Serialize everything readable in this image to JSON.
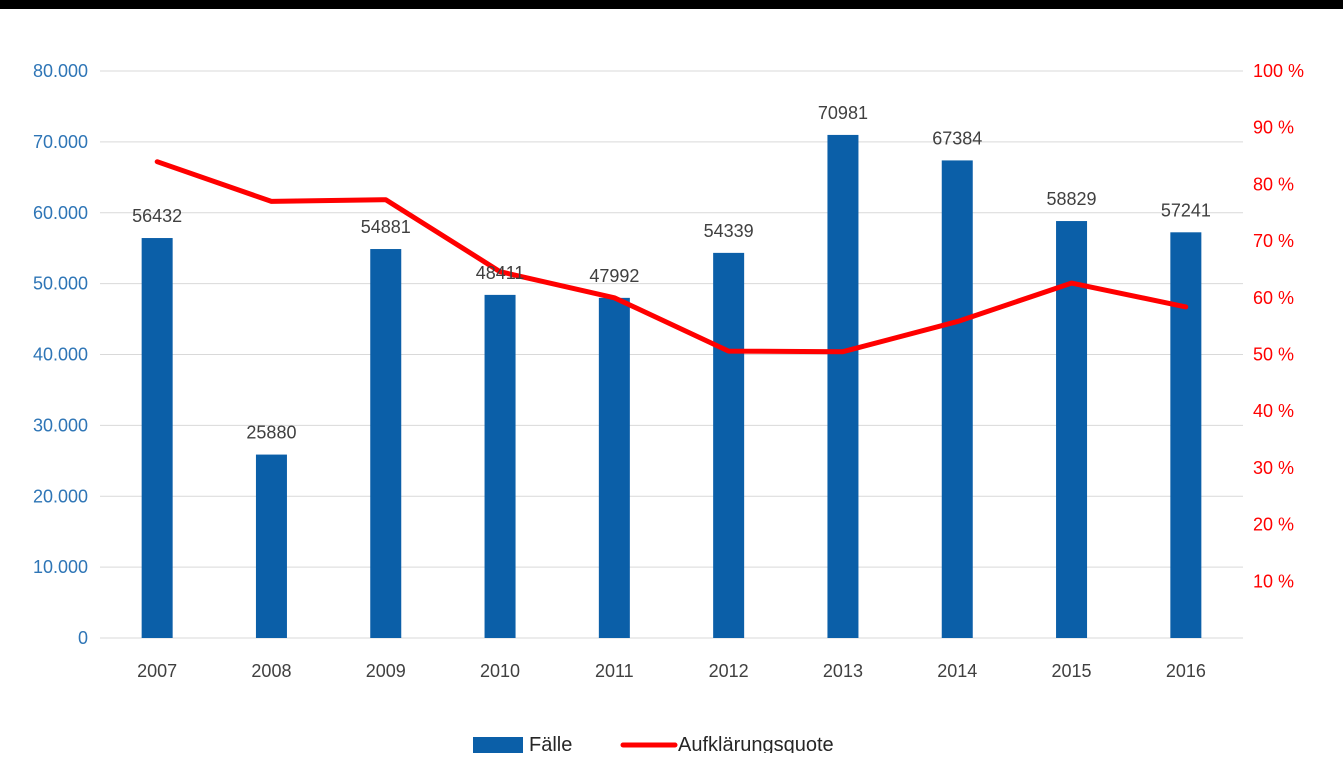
{
  "chart_data": {
    "type": "bar",
    "title": "",
    "categories": [
      "2007",
      "2008",
      "2009",
      "2010",
      "2011",
      "2012",
      "2013",
      "2014",
      "2015",
      "2016"
    ],
    "series": [
      {
        "name": "Fälle",
        "type": "bar",
        "axis": "left",
        "color": "#0B5FA8",
        "values": [
          56432,
          25880,
          54881,
          48411,
          47992,
          54339,
          70981,
          67384,
          58829,
          57241
        ],
        "labels": [
          "56432",
          "25880",
          "54881",
          "48411",
          "47992",
          "54339",
          "70981",
          "67384",
          "58829",
          "57241"
        ]
      },
      {
        "name": "Aufklärungsquote",
        "type": "line",
        "axis": "right",
        "color": "#FF0000",
        "values": [
          84,
          77,
          77.3,
          64.6,
          60,
          50.6,
          50.5,
          55.8,
          62.6,
          58.4
        ]
      }
    ],
    "left_axis": {
      "range": [
        0,
        80000
      ],
      "ticks": [
        0,
        10000,
        20000,
        30000,
        40000,
        50000,
        60000,
        70000,
        80000
      ],
      "tick_labels": [
        "0",
        "10.000",
        "20.000",
        "30.000",
        "40.000",
        "50.000",
        "60.000",
        "70.000",
        "80.000"
      ],
      "color": "#2E75B6"
    },
    "right_axis": {
      "range": [
        0,
        100
      ],
      "ticks": [
        10,
        20,
        30,
        40,
        50,
        60,
        70,
        80,
        90,
        100
      ],
      "tick_labels": [
        "10 %",
        "20 %",
        "30 %",
        "40 %",
        "50 %",
        "60 %",
        "70 %",
        "80 %",
        "90 %",
        "100 %"
      ],
      "color": "#FF0000"
    },
    "grid": true,
    "legend_position": "bottom-center",
    "gridline_color": "#D9D9D9"
  }
}
